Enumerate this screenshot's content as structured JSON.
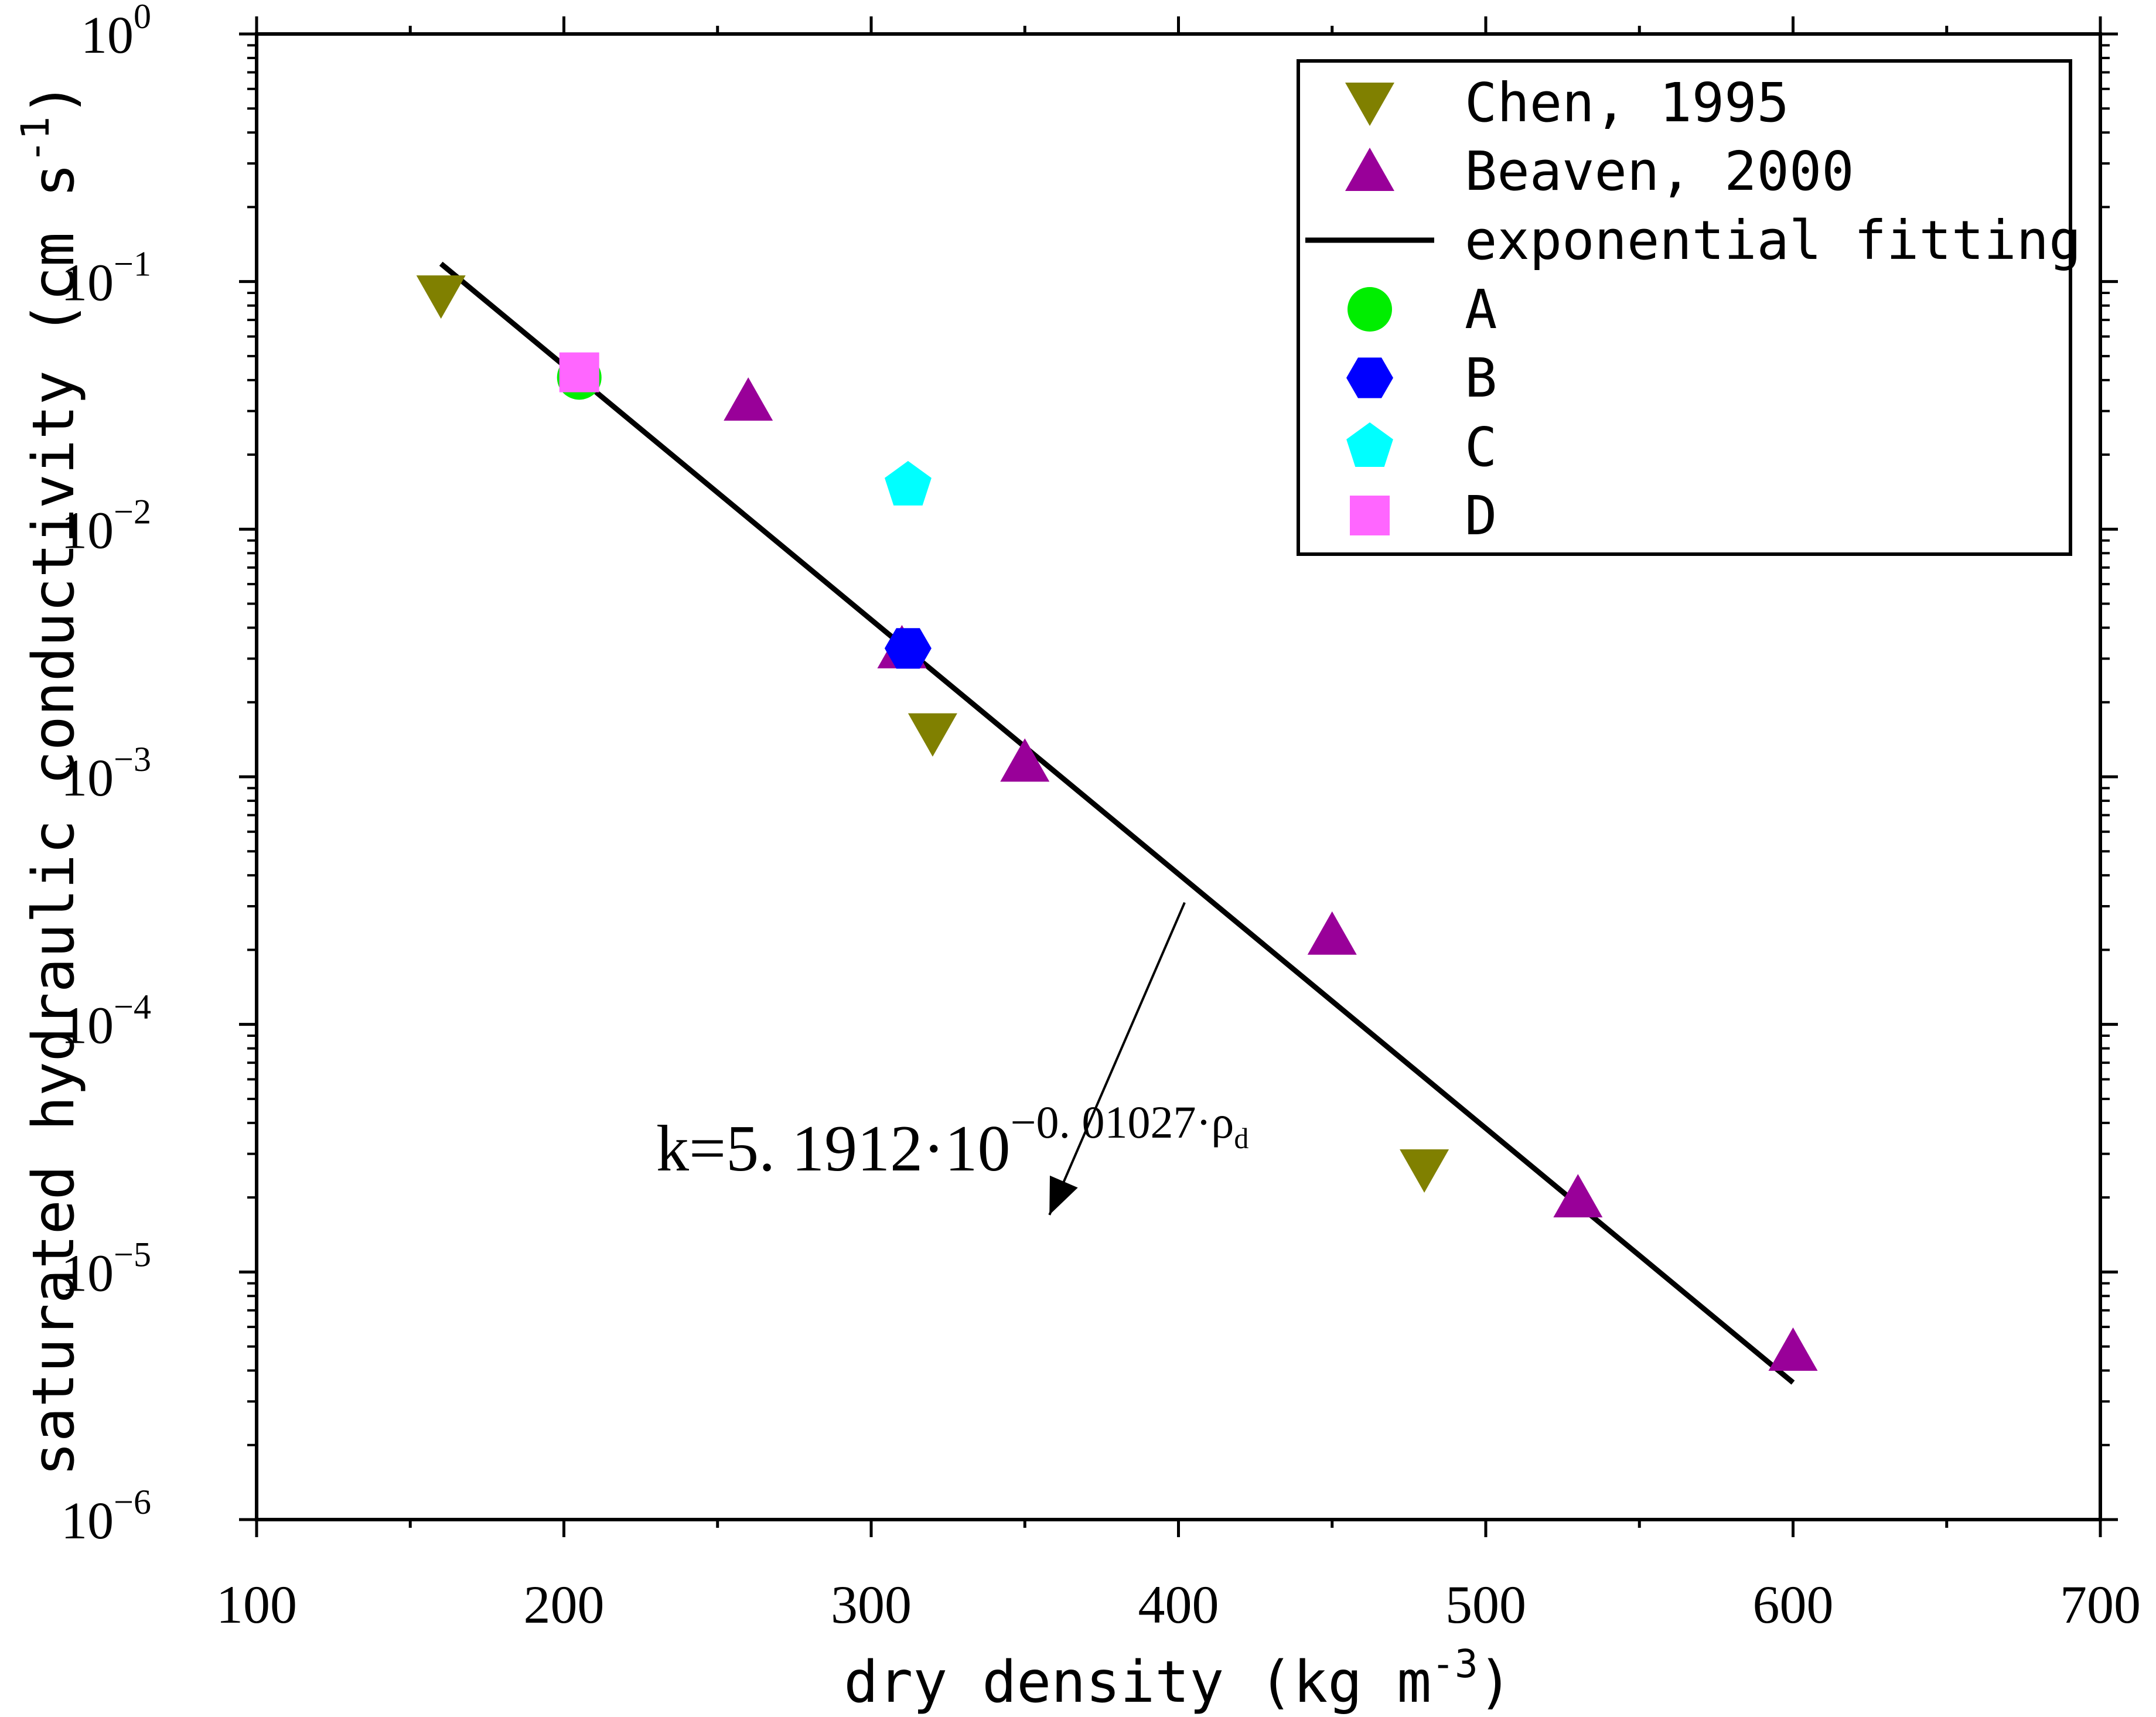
{
  "chart_data": {
    "type": "scatter",
    "x_scale": "linear",
    "y_scale": "log",
    "xlabel": "dry density (kg m",
    "xlabel_exp": "-3",
    "xlabel_close": ")",
    "ylabel": "saturated hydraulic conductivity (cm s",
    "ylabel_exp": "-1",
    "ylabel_close": ")",
    "xlim": [
      100,
      700
    ],
    "ylim": [
      1e-06,
      1
    ],
    "x_ticks": [
      100,
      200,
      300,
      400,
      500,
      600,
      700
    ],
    "x_tick_labels": [
      "100",
      "200",
      "300",
      "400",
      "500",
      "600",
      "700"
    ],
    "y_ticks": [
      1e-06,
      1e-05,
      0.0001,
      0.001,
      0.01,
      0.1,
      1
    ],
    "y_tick_labels": [
      {
        "base": "10",
        "exp": "-6"
      },
      {
        "base": "10",
        "exp": "-5"
      },
      {
        "base": "10",
        "exp": "-4"
      },
      {
        "base": "10",
        "exp": "-3"
      },
      {
        "base": "10",
        "exp": "-2"
      },
      {
        "base": "10",
        "exp": "-1"
      },
      {
        "base": "10",
        "exp": "0"
      }
    ],
    "legend_position": "top-right",
    "series": [
      {
        "name": "Chen, 1995",
        "marker": "triangle-down",
        "color": "#808000",
        "points": [
          [
            160,
            0.088
          ],
          [
            320,
            0.0015
          ],
          [
            480,
            2.6e-05
          ]
        ]
      },
      {
        "name": "Beaven, 2000",
        "marker": "triangle-up",
        "color": "#990099",
        "points": [
          [
            260,
            0.033
          ],
          [
            310,
            0.0033
          ],
          [
            350,
            0.00115
          ],
          [
            450,
            0.00023
          ],
          [
            530,
            2e-05
          ],
          [
            600,
            4.8e-06
          ]
        ]
      },
      {
        "name": "exponential fitting",
        "marker": "line",
        "color": "#000000",
        "coefficient": 5.1912,
        "exponent_rate": -0.01027,
        "x_range": [
          160,
          600
        ]
      },
      {
        "name": "A",
        "marker": "circle",
        "color": "#00ee00",
        "points": [
          [
            205,
            0.041
          ]
        ]
      },
      {
        "name": "B",
        "marker": "hexagon",
        "color": "#0000ff",
        "points": [
          [
            312,
            0.0033
          ]
        ]
      },
      {
        "name": "C",
        "marker": "pentagon",
        "color": "#00ffff",
        "points": [
          [
            312,
            0.015
          ]
        ]
      },
      {
        "name": "D",
        "marker": "square",
        "color": "#ff66ff",
        "points": [
          [
            205,
            0.043
          ]
        ]
      }
    ],
    "annotation": {
      "prefix": "k=5. 1912·10",
      "exp_prefix": "−0. 01027·ρ",
      "exp_sub": "d",
      "arrow_from_x": 402,
      "arrow_to_x": 358,
      "arrow_to_y": 1.7e-05
    }
  }
}
